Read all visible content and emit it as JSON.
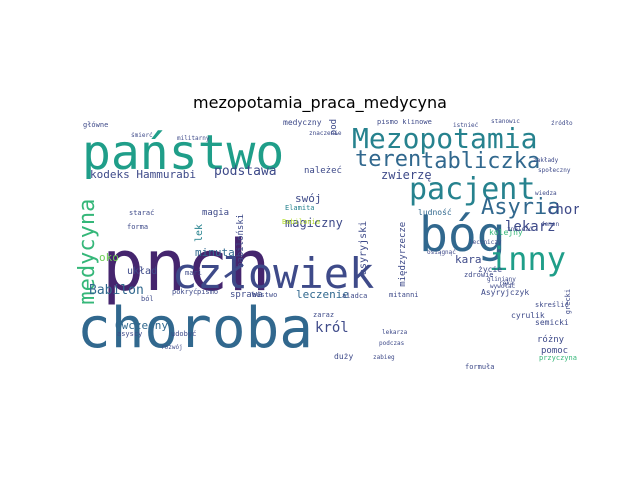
{
  "title": "mezopotamia_praca_medycyna",
  "palette": {
    "dark_purple": "#45256e",
    "indigo": "#3e4a89",
    "blue": "#31688e",
    "teal": "#26828e",
    "green": "#1f9e89",
    "light_green": "#35b779",
    "lime": "#6ece58",
    "yellow": "#b5de2b"
  },
  "words": [
    {
      "text": "pnch",
      "color": "#45256e"
    },
    {
      "text": "choroba",
      "color": "#31688e"
    },
    {
      "text": "państwo",
      "color": "#1f9e89"
    },
    {
      "text": "człowiek",
      "color": "#3e4a89"
    },
    {
      "text": "bóg",
      "color": "#31688e"
    },
    {
      "text": "Mezopotamia",
      "color": "#26828e"
    },
    {
      "text": "pacjent",
      "color": "#26828e"
    },
    {
      "text": "inny",
      "color": "#1f9e89"
    },
    {
      "text": "tabliczka",
      "color": "#31688e"
    },
    {
      "text": "teren",
      "color": "#31688e"
    },
    {
      "text": "Asyria",
      "color": "#31688e"
    },
    {
      "text": "medycyna",
      "color": "#35b779"
    },
    {
      "text": "podstawa",
      "color": "#3e4a89"
    },
    {
      "text": "kodeks Hammurabi",
      "color": "#3e4a89"
    },
    {
      "text": "zwierzę",
      "color": "#3e4a89"
    },
    {
      "text": "chory",
      "color": "#3e4a89"
    },
    {
      "text": "lekarz",
      "color": "#3e4a89"
    },
    {
      "text": "Babilon",
      "color": "#31688e"
    },
    {
      "text": "król",
      "color": "#3e4a89"
    },
    {
      "text": "minuta",
      "color": "#31688e"
    },
    {
      "text": "magiczny",
      "color": "#3e4a89"
    },
    {
      "text": "oko",
      "color": "#6ece58"
    },
    {
      "text": "kara",
      "color": "#3e4a89"
    },
    {
      "text": "Ówczesny",
      "color": "#31688e"
    },
    {
      "text": "układ",
      "color": "#3e4a89"
    },
    {
      "text": "swój",
      "color": "#3e4a89"
    },
    {
      "text": "magia",
      "color": "#3e4a89"
    },
    {
      "text": "lek",
      "color": "#26828e"
    },
    {
      "text": "należeć",
      "color": "#3e4a89"
    },
    {
      "text": "leczenie",
      "color": "#31688e"
    },
    {
      "text": "Elamita",
      "color": "#26828e"
    },
    {
      "text": "Babilonia",
      "color": "#b5de2b"
    },
    {
      "text": "życie",
      "color": "#3e4a89"
    },
    {
      "text": "kolejny",
      "color": "#35b779"
    },
    {
      "text": "ludność",
      "color": "#31688e"
    },
    {
      "text": "różny",
      "color": "#3e4a89"
    },
    {
      "text": "pomoc",
      "color": "#3e4a89"
    },
    {
      "text": "cyrulik",
      "color": "#3e4a89"
    },
    {
      "text": "semicki",
      "color": "#3e4a89"
    },
    {
      "text": "Asyryjczyk",
      "color": "#3e4a89"
    },
    {
      "text": "babiloński",
      "color": "#3e4a89"
    },
    {
      "text": "asyryjski",
      "color": "#3e4a89"
    },
    {
      "text": "międzyrzecze",
      "color": "#3e4a89"
    },
    {
      "text": "sprawa",
      "color": "#3e4a89"
    },
    {
      "text": "główne",
      "color": "#3e4a89"
    },
    {
      "text": "medyczny",
      "color": "#3e4a89"
    },
    {
      "text": "stanowić",
      "color": "#3e4a89"
    },
    {
      "text": "źródło",
      "color": "#3e4a89"
    },
    {
      "text": "zaraz",
      "color": "#3e4a89"
    },
    {
      "text": "bóstwo",
      "color": "#3e4a89"
    },
    {
      "text": "mitanni",
      "color": "#3e4a89"
    },
    {
      "text": "duży",
      "color": "#3e4a89"
    },
    {
      "text": "aladca",
      "color": "#3e4a89"
    },
    {
      "text": "grecki",
      "color": "#3e4a89"
    },
    {
      "text": "przyczyna",
      "color": "#35b779"
    },
    {
      "text": "formuła",
      "color": "#3e4a89"
    },
    {
      "text": "skreślić",
      "color": "#3e4a89"
    },
    {
      "text": "ręka",
      "color": "#3e4a89"
    },
    {
      "text": "forma",
      "color": "#3e4a89"
    },
    {
      "text": "starać",
      "color": "#3e4a89"
    },
    {
      "text": "mari",
      "color": "#3e4a89"
    },
    {
      "text": "ból",
      "color": "#3e4a89"
    },
    {
      "text": "pokryć",
      "color": "#3e4a89"
    },
    {
      "text": "pismo",
      "color": "#3e4a89"
    },
    {
      "text": "asyscy",
      "color": "#3e4a89"
    },
    {
      "text": "udobyć",
      "color": "#3e4a89"
    },
    {
      "text": "rozwój",
      "color": "#3e4a89"
    },
    {
      "text": "zdrowie",
      "color": "#3e4a89"
    },
    {
      "text": "gliniany",
      "color": "#3e4a89"
    },
    {
      "text": "wywołać",
      "color": "#3e4a89"
    },
    {
      "text": "istnieć",
      "color": "#3e4a89"
    },
    {
      "text": "znaczenie",
      "color": "#3e4a89"
    },
    {
      "text": "militarny",
      "color": "#3e4a89"
    },
    {
      "text": "śmierć",
      "color": "#3e4a89"
    },
    {
      "text": "osiągnąć",
      "color": "#3e4a89"
    },
    {
      "text": "wiedza",
      "color": "#3e4a89"
    },
    {
      "text": "zakłady",
      "color": "#3e4a89"
    },
    {
      "text": "społeczny",
      "color": "#3e4a89"
    },
    {
      "text": "demon",
      "color": "#3e4a89"
    },
    {
      "text": "znaleźć",
      "color": "#3e4a89"
    },
    {
      "text": "pismo klinowe",
      "color": "#3e4a89"
    },
    {
      "text": "pod",
      "color": "#3e4a89"
    },
    {
      "text": "podczas",
      "color": "#3e4a89"
    },
    {
      "text": "lekarza",
      "color": "#3e4a89"
    },
    {
      "text": "zabieg",
      "color": "#3e4a89"
    },
    {
      "text": "leczniczy",
      "color": "#3e4a89"
    }
  ]
}
